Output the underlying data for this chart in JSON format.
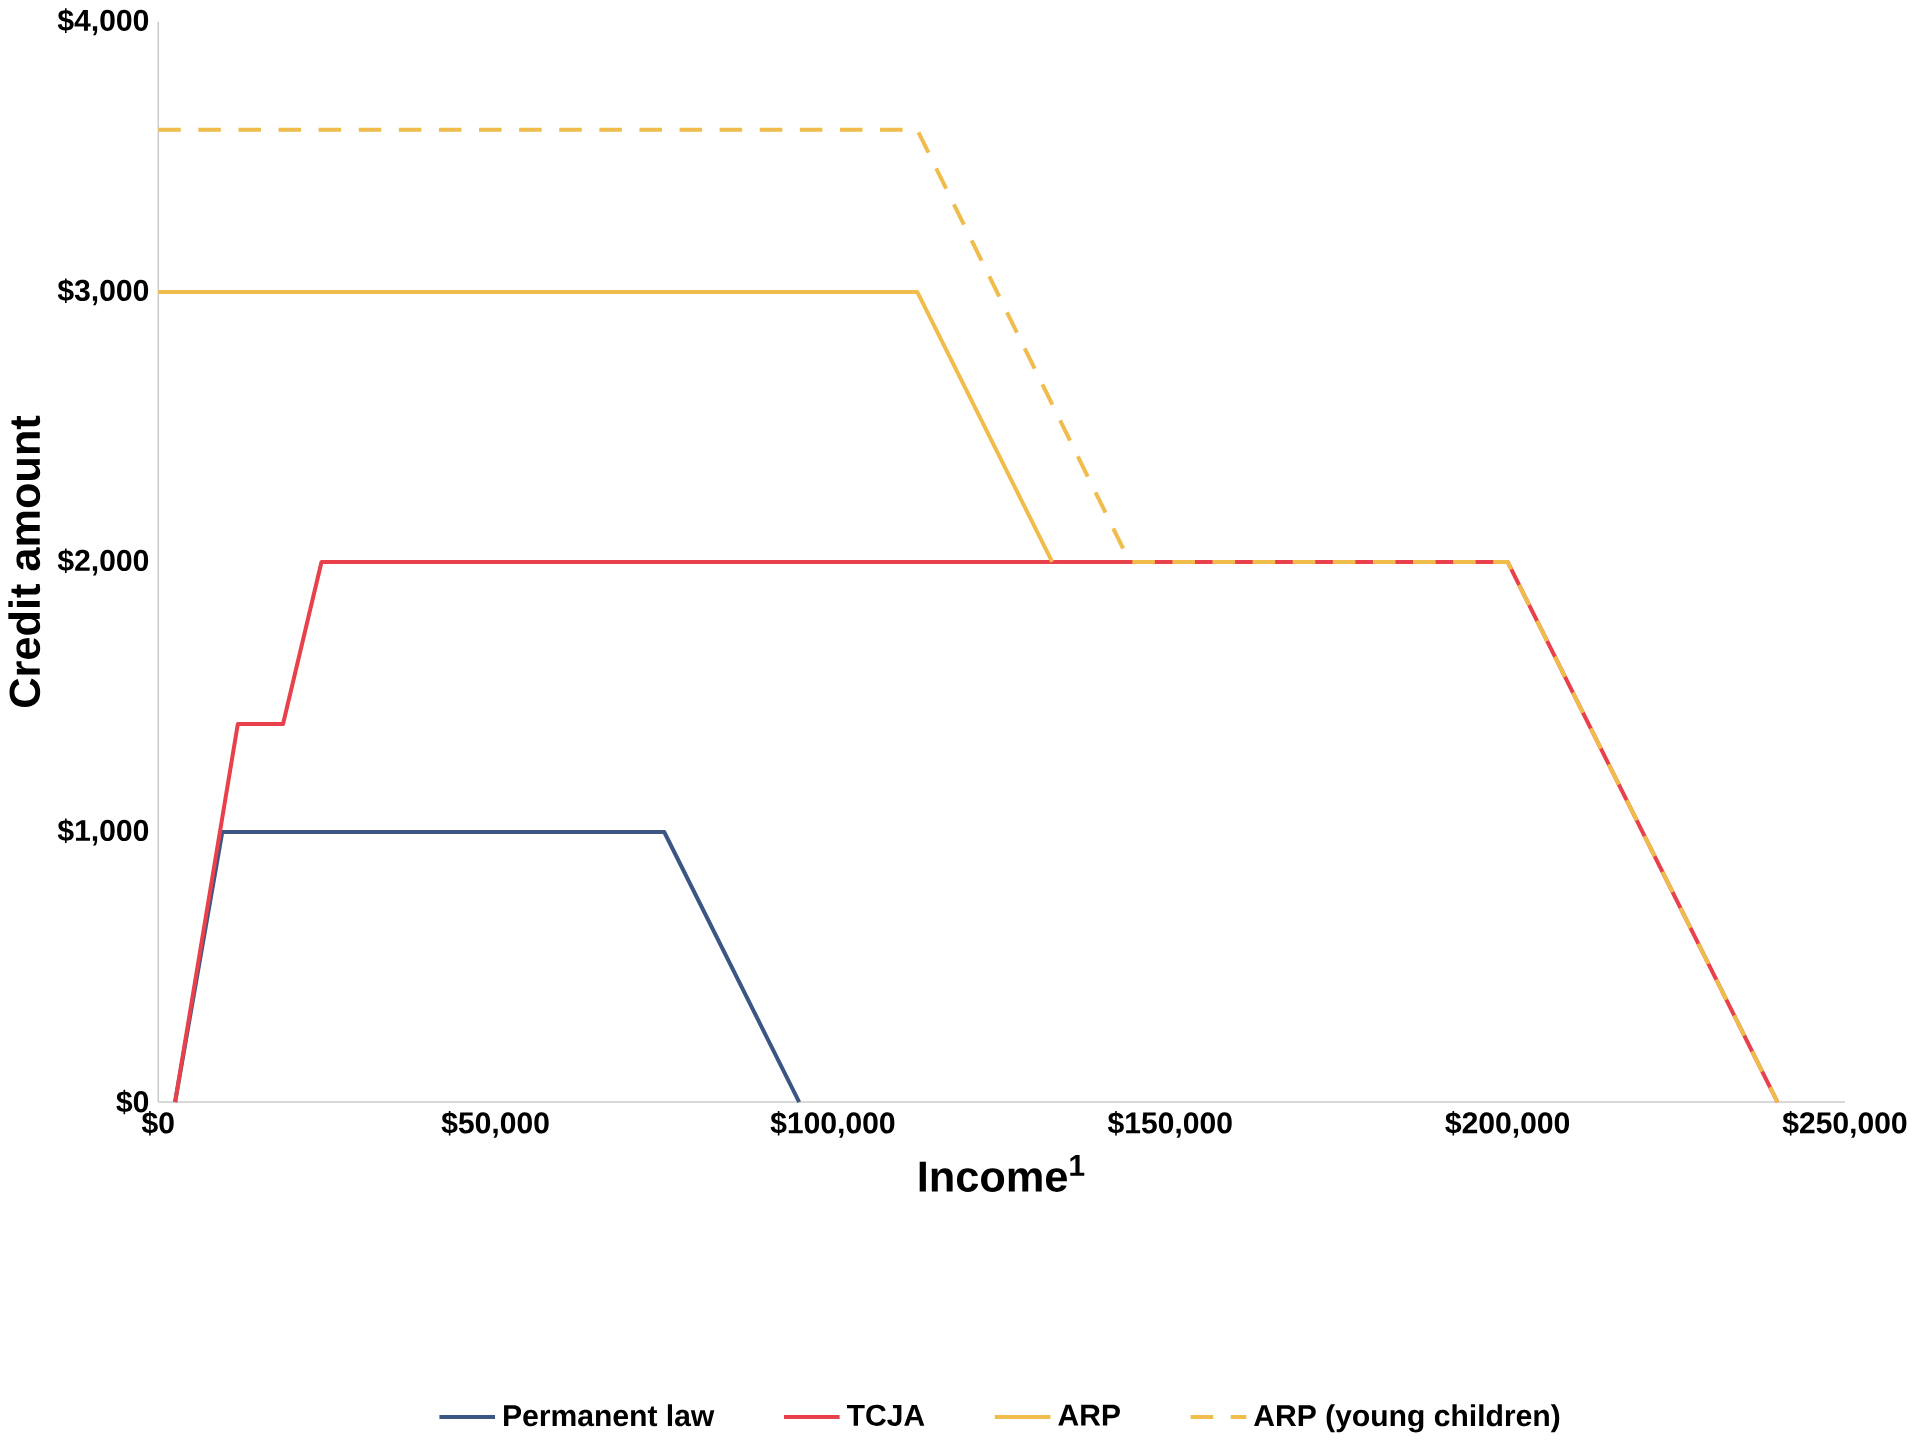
{
  "chart_data": {
    "type": "line",
    "xlabel": "Income$^{1}$",
    "ylabel": "Credit amount",
    "xlim": [
      0,
      250000
    ],
    "ylim": [
      0,
      4000
    ],
    "xticks": [
      {
        "value": 0,
        "label": "$0"
      },
      {
        "value": 50000,
        "label": "$50,000"
      },
      {
        "value": 100000,
        "label": "$100,000"
      },
      {
        "value": 150000,
        "label": "$150,000"
      },
      {
        "value": 200000,
        "label": "$200,000"
      },
      {
        "value": 250000,
        "label": "$250,000"
      }
    ],
    "yticks": [
      {
        "value": 0,
        "label": "$0"
      },
      {
        "value": 1000,
        "label": "$1,000"
      },
      {
        "value": 2000,
        "label": "$2,000"
      },
      {
        "value": 3000,
        "label": "$3,000"
      },
      {
        "value": 4000,
        "label": "$4,000"
      }
    ],
    "grid": false,
    "legend": "bottom",
    "marker": "none",
    "series": [
      {
        "name": "Permanent law",
        "color": "#3b5683",
        "x": [
          2500,
          9500,
          75000,
          95000
        ],
        "values": [
          0,
          1000,
          1000,
          0
        ]
      },
      {
        "name": "TCJA",
        "color": "#e8414b",
        "x": [
          2500,
          11800,
          18500,
          24200,
          200000,
          240000
        ],
        "values": [
          0,
          1400,
          1400,
          2000,
          2000,
          0
        ]
      },
      {
        "name": "ARP",
        "color": "#f0bc4c",
        "x": [
          0,
          112500,
          132500
        ],
        "values": [
          3000,
          3000,
          2000
        ]
      },
      {
        "name": "ARP (young children)",
        "color": "#f0bc4c",
        "line_style": "dashed",
        "x": [
          0,
          112500,
          144000,
          200000,
          240000
        ],
        "values": [
          3600,
          3600,
          2000,
          2000,
          0
        ]
      }
    ]
  }
}
